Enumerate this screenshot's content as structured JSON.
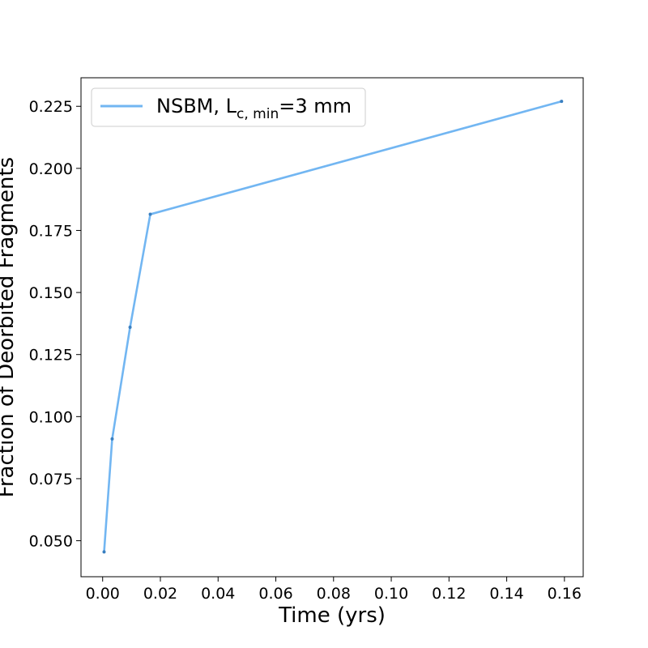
{
  "chart_data": {
    "type": "line",
    "title": "",
    "xlabel": "Time (yrs)",
    "ylabel": "Fraction of Deorbited Fragments",
    "xlim": [
      -0.0075,
      0.1665
    ],
    "ylim": [
      0.0355,
      0.2365
    ],
    "xticks": [
      "0.00",
      "0.02",
      "0.04",
      "0.06",
      "0.08",
      "0.10",
      "0.12",
      "0.14",
      "0.16"
    ],
    "yticks": [
      "0.050",
      "0.075",
      "0.100",
      "0.125",
      "0.150",
      "0.175",
      "0.200",
      "0.225"
    ],
    "grid": false,
    "legend_position": "top-left",
    "series": [
      {
        "name": "NSBM, L",
        "name_sub": "c, min",
        "name_suffix": "=3 mm",
        "color": "#72b6f2",
        "x": [
          0.0005,
          0.0033,
          0.0095,
          0.0165,
          0.159
        ],
        "y": [
          0.0455,
          0.091,
          0.136,
          0.1815,
          0.227
        ]
      }
    ]
  }
}
